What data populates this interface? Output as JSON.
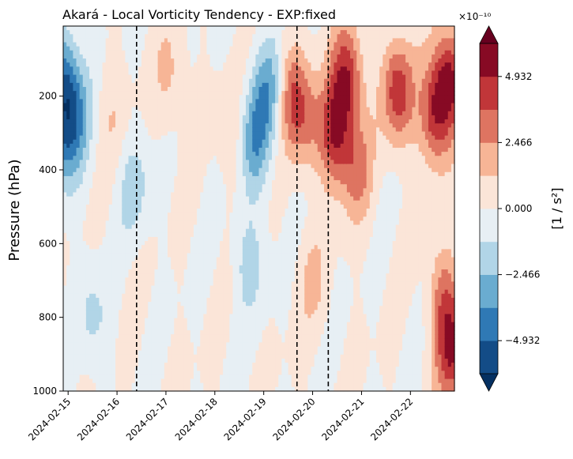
{
  "chart_data": {
    "type": "heatmap",
    "title": "Akará - Local Vorticity Tendency - EXP:fixed",
    "xlabel": "",
    "ylabel": "Pressure (hPa)",
    "x_tick_labels": [
      "2024-02-15",
      "2024-02-16",
      "2024-02-17",
      "2024-02-18",
      "2024-02-19",
      "2024-02-20",
      "2024-02-21",
      "2024-02-22"
    ],
    "x_range_days": [
      0,
      8.0
    ],
    "x_tick_positions_days": [
      0.1,
      1.1,
      2.1,
      3.1,
      4.1,
      5.1,
      6.1,
      7.1
    ],
    "y_tick_labels": [
      "200",
      "400",
      "600",
      "800",
      "1000"
    ],
    "y_tick_values": [
      200,
      400,
      600,
      800,
      1000
    ],
    "y_range": [
      1000,
      10
    ],
    "y_inverted": true,
    "vertical_dashed_lines_days": [
      1.5,
      4.78,
      5.42
    ],
    "colorbar": {
      "label": "[1 / s²]",
      "exponent_label": "×10⁻¹⁰",
      "tick_labels": [
        "−4.932",
        "−2.466",
        "0.000",
        "2.466",
        "4.932"
      ],
      "tick_values": [
        -4.932,
        -2.466,
        0.0,
        2.466,
        4.932
      ],
      "levels": [
        -6.165,
        -4.932,
        -3.699,
        -2.466,
        -1.233,
        0.0,
        1.233,
        2.466,
        3.699,
        4.932,
        6.165
      ],
      "colors": [
        "#053061",
        "#134c87",
        "#2f79b5",
        "#6aacd0",
        "#b1d5e7",
        "#e7eff4",
        "#fbe5d8",
        "#f7b596",
        "#de7461",
        "#c13639",
        "#870a24",
        "#67001f"
      ]
    },
    "field_features": [
      {
        "day": 0.0,
        "p": 160,
        "value": -4.5
      },
      {
        "day": 0.05,
        "p": 320,
        "value": -3.2
      },
      {
        "day": 0.3,
        "p": 250,
        "value": -2.0
      },
      {
        "day": 1.0,
        "p": 250,
        "value": 1.0
      },
      {
        "day": 1.45,
        "p": 450,
        "value": -1.8
      },
      {
        "day": 2.2,
        "p": 150,
        "value": 1.5
      },
      {
        "day": 3.5,
        "p": 300,
        "value": 1.2
      },
      {
        "day": 3.9,
        "p": 320,
        "value": -3.5
      },
      {
        "day": 4.2,
        "p": 180,
        "value": -3.0
      },
      {
        "day": 4.7,
        "p": 200,
        "value": 3.5
      },
      {
        "day": 5.0,
        "p": 280,
        "value": 2.0
      },
      {
        "day": 5.55,
        "p": 300,
        "value": 4.5
      },
      {
        "day": 5.8,
        "p": 150,
        "value": 4.8
      },
      {
        "day": 6.0,
        "p": 400,
        "value": 2.8
      },
      {
        "day": 6.85,
        "p": 190,
        "value": 4.6
      },
      {
        "day": 7.6,
        "p": 250,
        "value": 4.4
      },
      {
        "day": 7.9,
        "p": 150,
        "value": 5.0
      },
      {
        "day": 7.95,
        "p": 900,
        "value": 4.5
      },
      {
        "day": 7.8,
        "p": 750,
        "value": 3.0
      },
      {
        "day": 0.6,
        "p": 800,
        "value": -1.5
      },
      {
        "day": 3.8,
        "p": 650,
        "value": -1.8
      },
      {
        "day": 5.1,
        "p": 700,
        "value": 1.3
      }
    ]
  }
}
